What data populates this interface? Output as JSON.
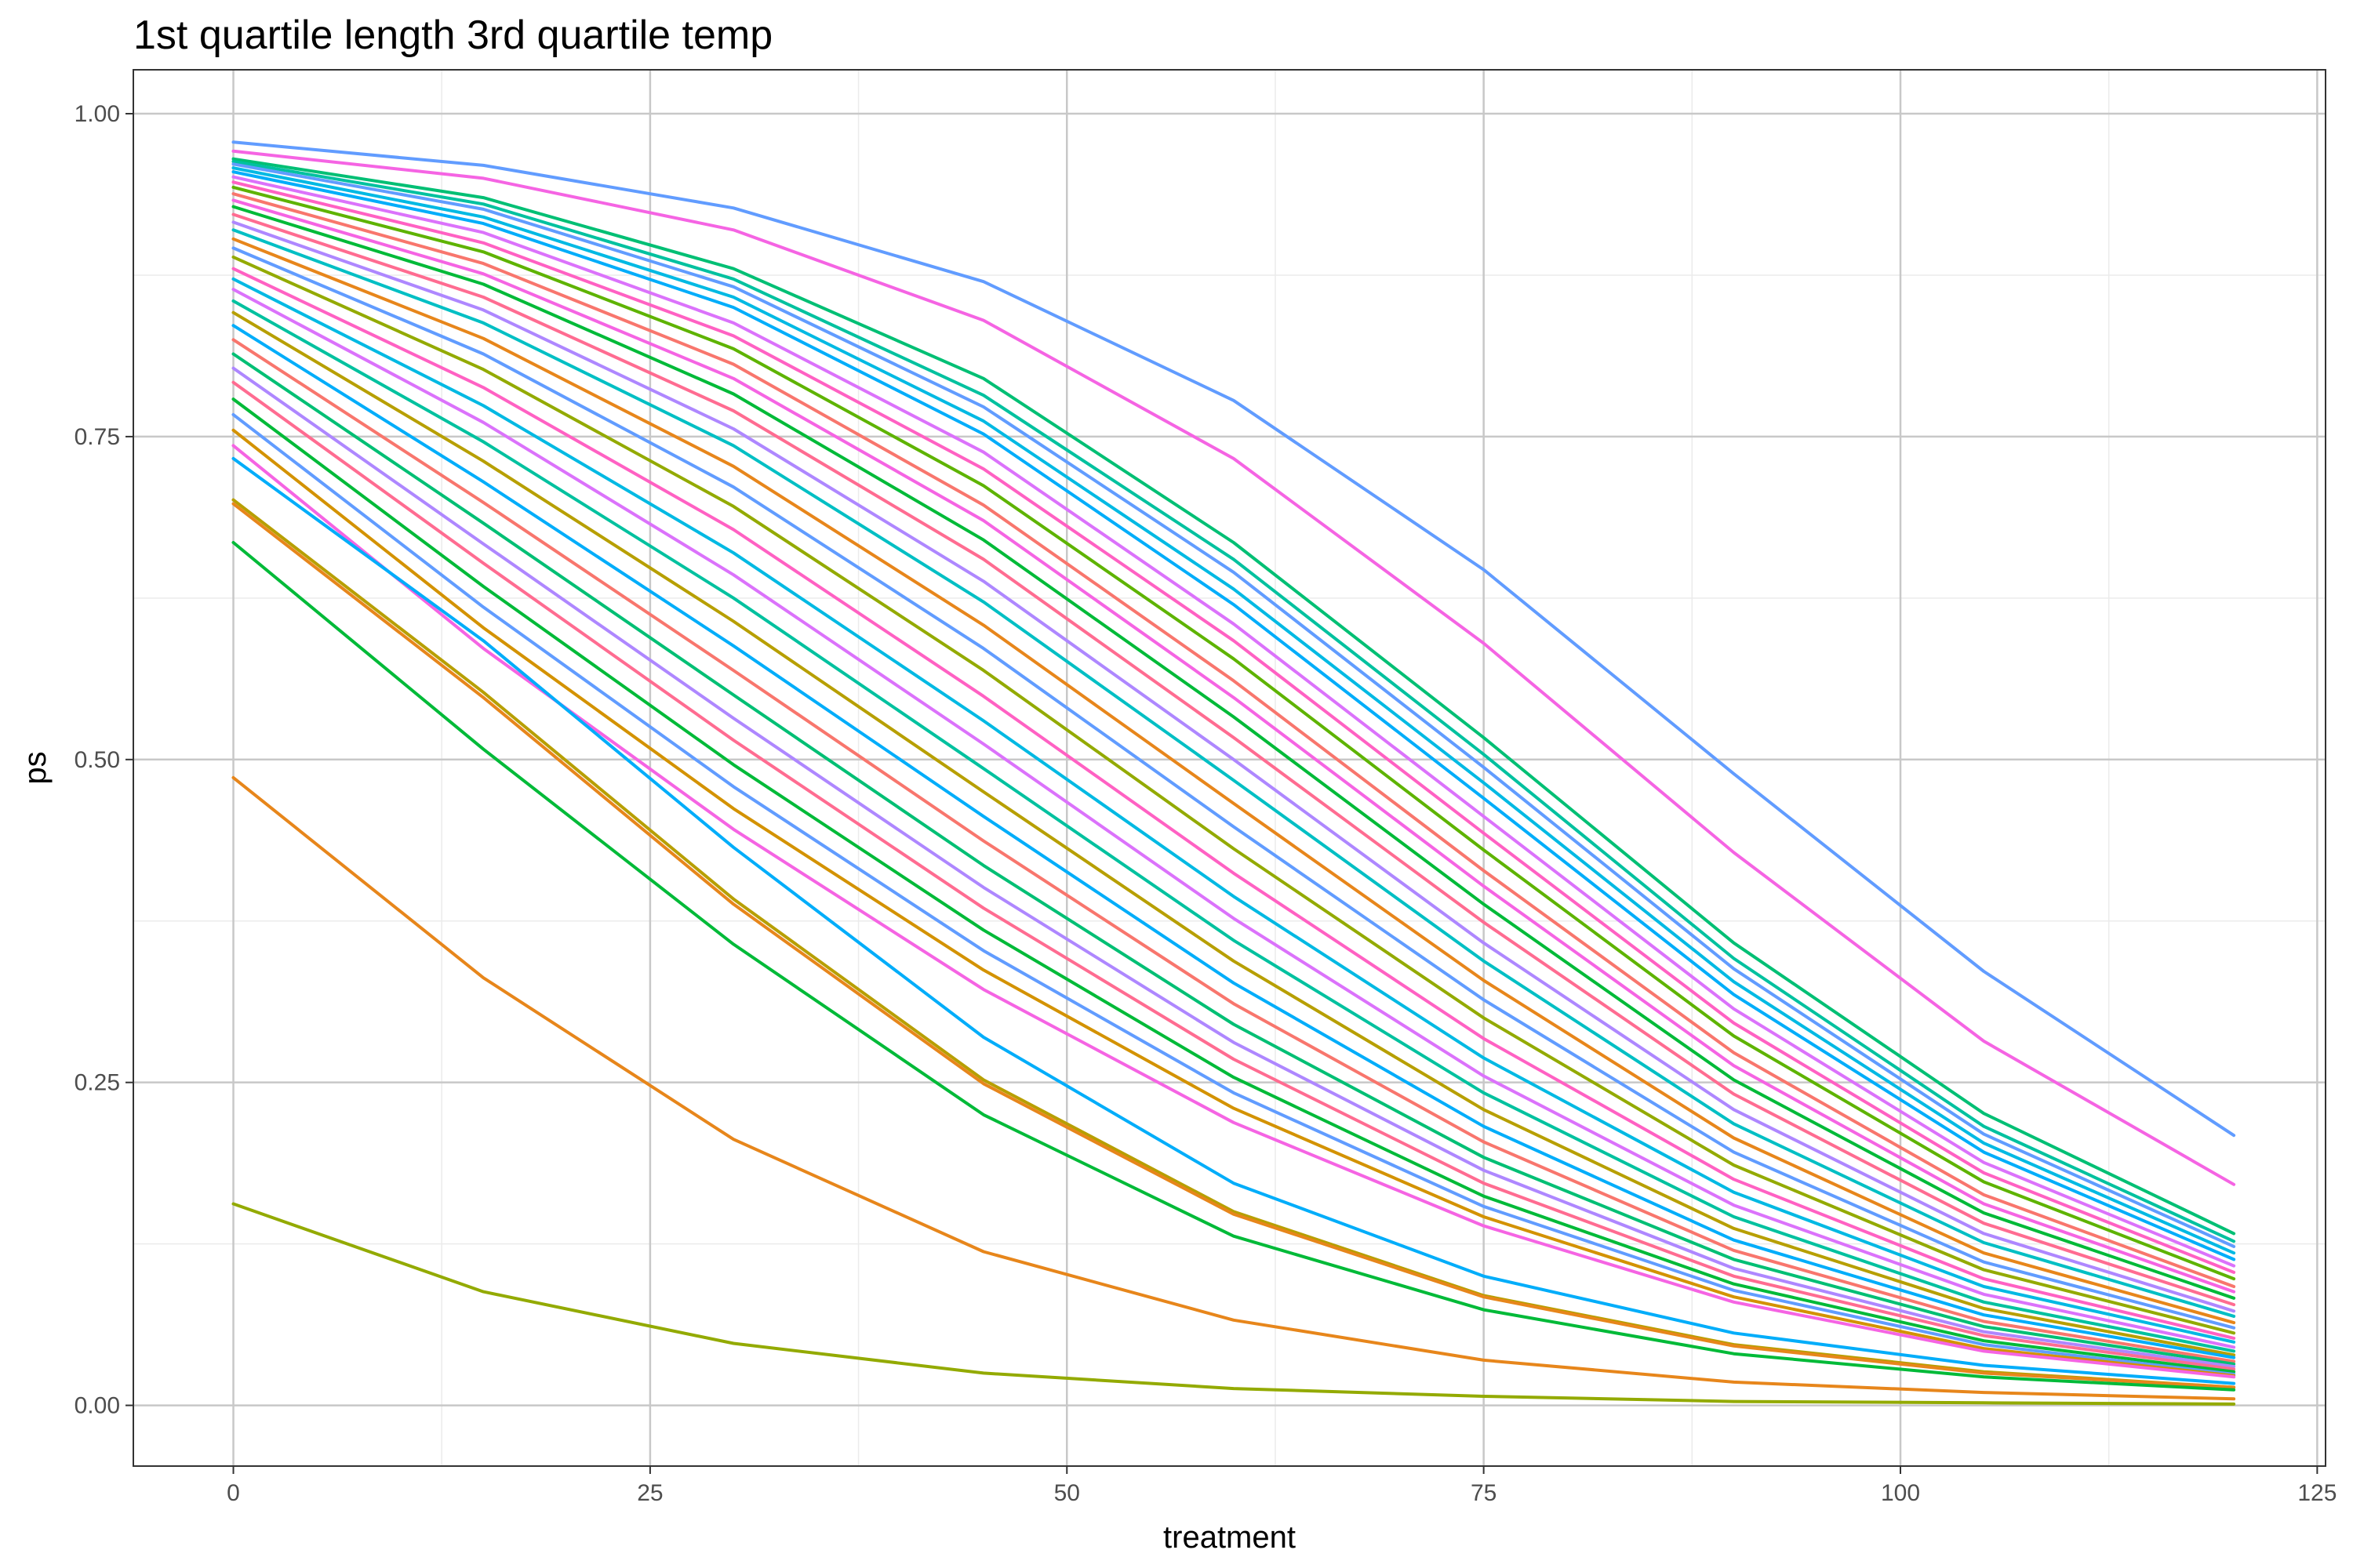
{
  "chart_data": {
    "type": "line",
    "title": "1st quartile length 3rd quartile temp",
    "xlabel": "treatment",
    "ylabel": "ps",
    "xlim": [
      -6,
      125.5
    ],
    "ylim": [
      -0.047,
      1.034
    ],
    "x_ticks": [
      0,
      25,
      50,
      75,
      100,
      125
    ],
    "x_tick_labels": [
      "0",
      "25",
      "50",
      "75",
      "100",
      "125"
    ],
    "y_ticks": [
      0,
      0.25,
      0.5,
      0.75,
      1
    ],
    "y_tick_labels": [
      "0.00",
      "0.25",
      "0.50",
      "0.75",
      "1.00"
    ],
    "grid": true,
    "legend": "none",
    "x": [
      0,
      15,
      30,
      45,
      60,
      75,
      90,
      105,
      120
    ],
    "series_colors": [
      "#F8766D",
      "#E7861B",
      "#D39200",
      "#B79F00",
      "#93AA00",
      "#5EB300",
      "#00BA38",
      "#00BF74",
      "#00C19F",
      "#00BFC4",
      "#00B9E3",
      "#00ADFA",
      "#619CFF",
      "#AE87FF",
      "#DB72FB",
      "#F564E3",
      "#FF61C3",
      "#FF6C91"
    ],
    "series": [
      {
        "values": [
          0.978,
          0.96,
          0.927,
          0.87,
          0.778,
          0.647,
          0.489,
          0.336,
          0.209
        ],
        "color": "#619CFF"
      },
      {
        "values": [
          0.971,
          0.95,
          0.91,
          0.84,
          0.733,
          0.59,
          0.428,
          0.282,
          0.171
        ],
        "color": "#F564E3"
      },
      {
        "values": [
          0.965,
          0.935,
          0.88,
          0.795,
          0.668,
          0.517,
          0.358,
          0.226,
          0.133
        ],
        "color": "#00BF74"
      },
      {
        "values": [
          0.963,
          0.93,
          0.872,
          0.782,
          0.655,
          0.504,
          0.346,
          0.216,
          0.127
        ],
        "color": "#00C19F"
      },
      {
        "values": [
          0.961,
          0.926,
          0.866,
          0.773,
          0.645,
          0.494,
          0.338,
          0.21,
          0.123
        ],
        "color": "#619CFF"
      },
      {
        "values": [
          0.958,
          0.92,
          0.858,
          0.762,
          0.632,
          0.482,
          0.328,
          0.203,
          0.118
        ],
        "color": "#00B9E3"
      },
      {
        "values": [
          0.955,
          0.915,
          0.85,
          0.752,
          0.62,
          0.47,
          0.318,
          0.196,
          0.113
        ],
        "color": "#00ADFA"
      },
      {
        "values": [
          0.951,
          0.908,
          0.838,
          0.738,
          0.605,
          0.456,
          0.307,
          0.188,
          0.108
        ],
        "color": "#DB72FB"
      },
      {
        "values": [
          0.947,
          0.9,
          0.828,
          0.725,
          0.592,
          0.443,
          0.296,
          0.18,
          0.103
        ],
        "color": "#FF61C3"
      },
      {
        "values": [
          0.943,
          0.893,
          0.818,
          0.712,
          0.578,
          0.43,
          0.286,
          0.173,
          0.098
        ],
        "color": "#5EB300"
      },
      {
        "values": [
          0.938,
          0.884,
          0.806,
          0.697,
          0.561,
          0.414,
          0.273,
          0.163,
          0.092
        ],
        "color": "#F8766D"
      },
      {
        "values": [
          0.933,
          0.876,
          0.795,
          0.685,
          0.548,
          0.402,
          0.263,
          0.156,
          0.088
        ],
        "color": "#F564E3"
      },
      {
        "values": [
          0.928,
          0.868,
          0.783,
          0.67,
          0.533,
          0.388,
          0.252,
          0.149,
          0.083
        ],
        "color": "#00BA38"
      },
      {
        "values": [
          0.922,
          0.858,
          0.77,
          0.655,
          0.517,
          0.374,
          0.241,
          0.141,
          0.078
        ],
        "color": "#FF6C91"
      },
      {
        "values": [
          0.916,
          0.848,
          0.756,
          0.638,
          0.5,
          0.358,
          0.229,
          0.133,
          0.073
        ],
        "color": "#AE87FF"
      },
      {
        "values": [
          0.91,
          0.838,
          0.743,
          0.622,
          0.484,
          0.344,
          0.218,
          0.126,
          0.069
        ],
        "color": "#00BFC4"
      },
      {
        "values": [
          0.903,
          0.826,
          0.727,
          0.604,
          0.466,
          0.329,
          0.207,
          0.118,
          0.064
        ],
        "color": "#E7861B"
      },
      {
        "values": [
          0.896,
          0.814,
          0.711,
          0.586,
          0.448,
          0.314,
          0.196,
          0.111,
          0.06
        ],
        "color": "#619CFF"
      },
      {
        "values": [
          0.889,
          0.802,
          0.696,
          0.569,
          0.431,
          0.3,
          0.186,
          0.105,
          0.056
        ],
        "color": "#93AA00"
      },
      {
        "values": [
          0.88,
          0.788,
          0.678,
          0.549,
          0.412,
          0.284,
          0.175,
          0.098,
          0.052
        ],
        "color": "#FF61C3"
      },
      {
        "values": [
          0.872,
          0.774,
          0.66,
          0.53,
          0.394,
          0.269,
          0.165,
          0.092,
          0.049
        ],
        "color": "#00B9E3"
      },
      {
        "values": [
          0.864,
          0.761,
          0.643,
          0.512,
          0.377,
          0.255,
          0.155,
          0.086,
          0.045
        ],
        "color": "#DB72FB"
      },
      {
        "values": [
          0.855,
          0.746,
          0.625,
          0.493,
          0.36,
          0.242,
          0.146,
          0.08,
          0.042
        ],
        "color": "#00C19F"
      },
      {
        "values": [
          0.846,
          0.731,
          0.607,
          0.475,
          0.344,
          0.229,
          0.137,
          0.075,
          0.039
        ],
        "color": "#B79F00"
      },
      {
        "values": [
          0.836,
          0.715,
          0.588,
          0.456,
          0.327,
          0.216,
          0.128,
          0.07,
          0.037
        ],
        "color": "#00ADFA"
      },
      {
        "values": [
          0.825,
          0.699,
          0.569,
          0.437,
          0.311,
          0.204,
          0.12,
          0.065,
          0.034
        ],
        "color": "#F8766D"
      },
      {
        "values": [
          0.814,
          0.683,
          0.55,
          0.418,
          0.295,
          0.192,
          0.113,
          0.061,
          0.032
        ],
        "color": "#00BF74"
      },
      {
        "values": [
          0.803,
          0.667,
          0.532,
          0.401,
          0.281,
          0.182,
          0.106,
          0.057,
          0.03
        ],
        "color": "#AE87FF"
      },
      {
        "values": [
          0.792,
          0.652,
          0.515,
          0.385,
          0.268,
          0.172,
          0.1,
          0.054,
          0.028
        ],
        "color": "#FF6C91"
      },
      {
        "values": [
          0.779,
          0.634,
          0.496,
          0.368,
          0.254,
          0.162,
          0.094,
          0.05,
          0.026
        ],
        "color": "#00BA38"
      },
      {
        "values": [
          0.767,
          0.618,
          0.479,
          0.352,
          0.242,
          0.154,
          0.089,
          0.047,
          0.024
        ],
        "color": "#619CFF"
      },
      {
        "values": [
          0.755,
          0.602,
          0.462,
          0.337,
          0.23,
          0.146,
          0.084,
          0.044,
          0.023
        ],
        "color": "#D39200"
      },
      {
        "values": [
          0.743,
          0.586,
          0.446,
          0.322,
          0.219,
          0.139,
          0.08,
          0.042,
          0.022
        ],
        "color": "#F564E3"
      },
      {
        "values": [
          0.733,
          0.592,
          0.432,
          0.285,
          0.172,
          0.1,
          0.056,
          0.031,
          0.017
        ],
        "color": "#00ADFA"
      },
      {
        "values": [
          0.701,
          0.552,
          0.392,
          0.252,
          0.15,
          0.085,
          0.047,
          0.026,
          0.014
        ],
        "color": "#B79F00"
      },
      {
        "values": [
          0.698,
          0.548,
          0.388,
          0.249,
          0.148,
          0.084,
          0.046,
          0.025,
          0.014
        ],
        "color": "#E7861B"
      },
      {
        "values": [
          0.668,
          0.508,
          0.357,
          0.225,
          0.131,
          0.074,
          0.04,
          0.022,
          0.012
        ],
        "color": "#00BA38"
      },
      {
        "values": [
          0.486,
          0.331,
          0.206,
          0.119,
          0.066,
          0.035,
          0.018,
          0.01,
          0.005
        ],
        "color": "#E7861B"
      },
      {
        "values": [
          0.156,
          0.088,
          0.048,
          0.025,
          0.013,
          0.007,
          0.003,
          0.002,
          0.001
        ],
        "color": "#93AA00"
      }
    ]
  }
}
